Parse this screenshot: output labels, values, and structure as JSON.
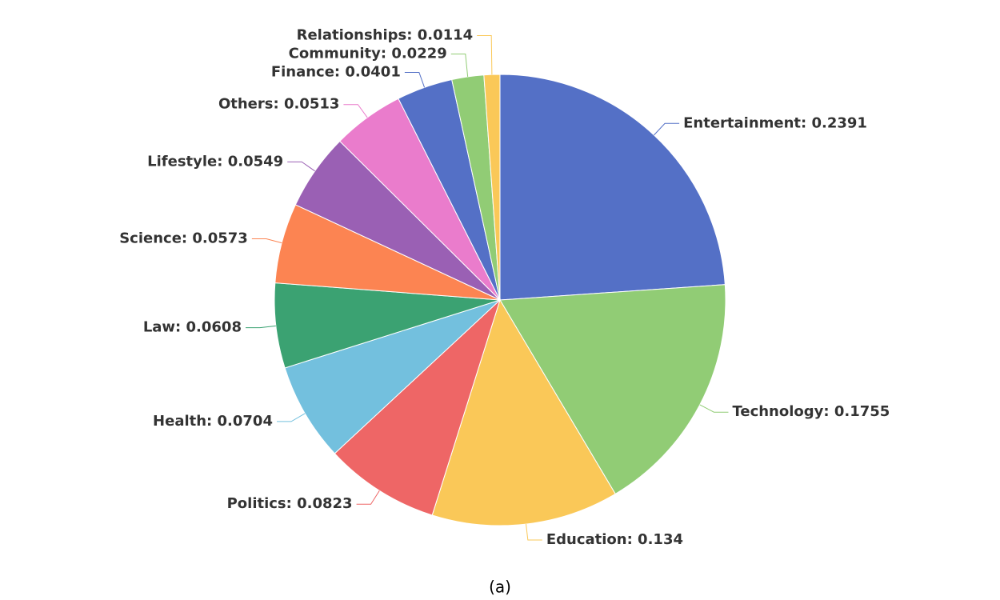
{
  "chart_data": {
    "type": "pie",
    "values": [
      0.2391,
      0.1755,
      0.134,
      0.0823,
      0.0704,
      0.0608,
      0.0573,
      0.0549,
      0.0513,
      0.0401,
      0.0229,
      0.0114
    ],
    "value_labels": [
      "Entertainment: 0.2391",
      "Technology: 0.1755",
      "Education: 0.134",
      "Politics: 0.0823",
      "Health: 0.0704",
      "Law: 0.0608",
      "Science: 0.0573",
      "Lifestyle: 0.0549",
      "Others: 0.0513",
      "Finance: 0.0401",
      "Community: 0.0229",
      "Relationships: 0.0114"
    ],
    "colors": [
      "#5470c6",
      "#91cc75",
      "#fac858",
      "#ee6666",
      "#73c0de",
      "#3ba272",
      "#fc8452",
      "#9a60b4",
      "#ea7ccc",
      "#5470c6",
      "#91cc75",
      "#fac858"
    ],
    "caption": "(a)"
  }
}
